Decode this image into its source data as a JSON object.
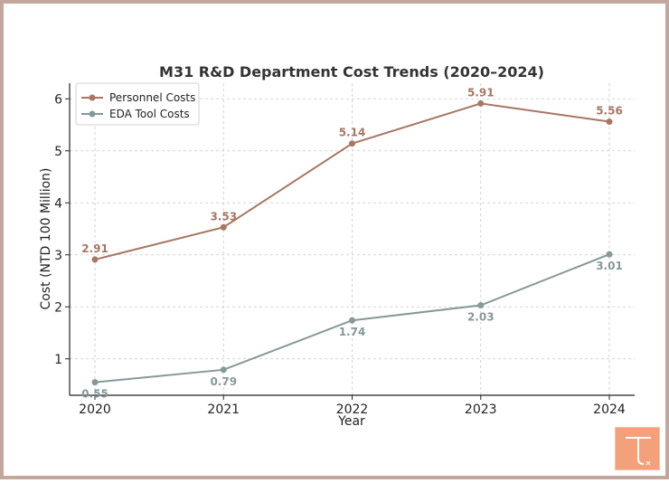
{
  "chart_data": {
    "type": "line",
    "title": "M31 R&D Department Cost Trends (2020–2024)",
    "xlabel": "Year",
    "ylabel": "Cost (NTD 100 Million)",
    "categories": [
      "2020",
      "2021",
      "2022",
      "2023",
      "2024"
    ],
    "ylim": [
      0.3,
      6.3
    ],
    "yticks": [
      "1",
      "2",
      "3",
      "4",
      "5",
      "6"
    ],
    "grid": true,
    "legend_position": "top-left",
    "series": [
      {
        "name": "Personnel Costs",
        "values": [
          2.91,
          3.53,
          5.14,
          5.91,
          5.56
        ],
        "labels": [
          "2.91",
          "3.53",
          "5.14",
          "5.91",
          "5.56"
        ],
        "color": "#a87663"
      },
      {
        "name": "EDA Tool Costs",
        "values": [
          0.55,
          0.79,
          1.74,
          2.03,
          3.01
        ],
        "labels": [
          "0.55",
          "0.79",
          "1.74",
          "2.03",
          "3.01"
        ],
        "color": "#86989a"
      }
    ]
  },
  "logo": {
    "name": "brand-logo",
    "color": "#f4a07a"
  }
}
